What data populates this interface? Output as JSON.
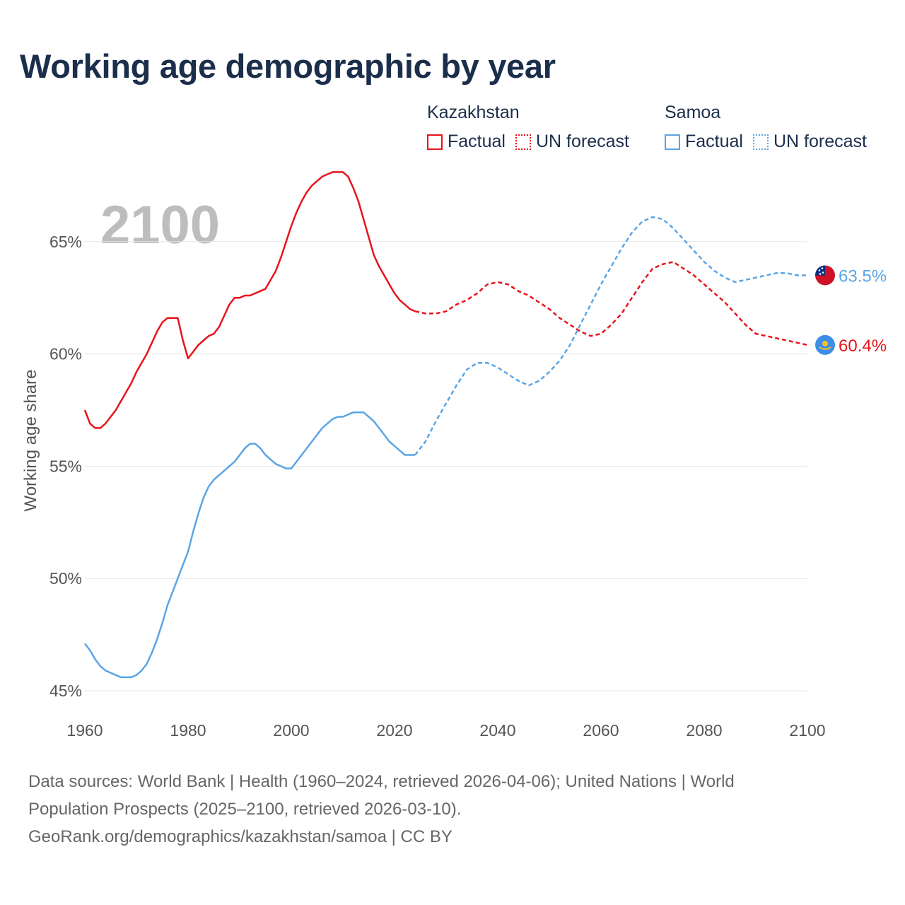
{
  "title": "Working age demographic by year",
  "year_watermark": "2100",
  "legend": {
    "groups": [
      {
        "name": "Kazakhstan",
        "color": "#e8141b",
        "factual": "Factual",
        "forecast": "UN forecast"
      },
      {
        "name": "Samoa",
        "color": "#5aa5e6",
        "factual": "Factual",
        "forecast": "UN forecast"
      }
    ]
  },
  "chart_data": {
    "type": "line",
    "title": "Working age demographic by year",
    "xlabel": "",
    "ylabel": "Working age share",
    "xlim": [
      1960,
      2100
    ],
    "ylim": [
      45,
      68.3
    ],
    "x_ticks": [
      1960,
      1980,
      2000,
      2020,
      2040,
      2060,
      2080,
      2100
    ],
    "y_ticks": [
      45,
      50,
      55,
      60,
      65
    ],
    "y_tick_labels": [
      "45%",
      "50%",
      "55%",
      "60%",
      "65%"
    ],
    "grid": true,
    "series": [
      {
        "name": "Kazakhstan",
        "color": "#e8141b",
        "end_label": "60.4%",
        "factual": {
          "x": [
            1960,
            1961,
            1962,
            1963,
            1964,
            1965,
            1966,
            1967,
            1968,
            1969,
            1970,
            1971,
            1972,
            1973,
            1974,
            1975,
            1976,
            1977,
            1978,
            1979,
            1980,
            1981,
            1982,
            1983,
            1984,
            1985,
            1986,
            1987,
            1988,
            1989,
            1990,
            1991,
            1992,
            1993,
            1994,
            1995,
            1996,
            1997,
            1998,
            1999,
            2000,
            2001,
            2002,
            2003,
            2004,
            2005,
            2006,
            2007,
            2008,
            2009,
            2010,
            2011,
            2012,
            2013,
            2014,
            2015,
            2016,
            2017,
            2018,
            2019,
            2020,
            2021,
            2022,
            2023,
            2024
          ],
          "y": [
            57.5,
            56.9,
            56.7,
            56.7,
            56.9,
            57.2,
            57.5,
            57.9,
            58.3,
            58.7,
            59.2,
            59.6,
            60.0,
            60.5,
            61.0,
            61.4,
            61.6,
            61.6,
            61.6,
            60.6,
            59.8,
            60.1,
            60.4,
            60.6,
            60.8,
            60.9,
            61.2,
            61.7,
            62.2,
            62.5,
            62.5,
            62.6,
            62.6,
            62.7,
            62.8,
            62.9,
            63.3,
            63.7,
            64.3,
            65.0,
            65.7,
            66.3,
            66.8,
            67.2,
            67.5,
            67.7,
            67.9,
            68.0,
            68.1,
            68.1,
            68.1,
            67.9,
            67.4,
            66.8,
            66.0,
            65.2,
            64.4,
            63.9,
            63.5,
            63.1,
            62.7,
            62.4,
            62.2,
            62.0,
            61.9
          ]
        },
        "forecast": {
          "x": [
            2024,
            2026,
            2028,
            2030,
            2032,
            2034,
            2036,
            2038,
            2040,
            2042,
            2044,
            2046,
            2048,
            2050,
            2052,
            2054,
            2056,
            2058,
            2060,
            2062,
            2064,
            2066,
            2068,
            2070,
            2072,
            2074,
            2076,
            2078,
            2080,
            2082,
            2084,
            2086,
            2088,
            2090,
            2092,
            2094,
            2096,
            2098,
            2100
          ],
          "y": [
            61.9,
            61.8,
            61.8,
            61.9,
            62.2,
            62.4,
            62.7,
            63.1,
            63.2,
            63.1,
            62.8,
            62.6,
            62.3,
            62.0,
            61.6,
            61.3,
            61.0,
            60.8,
            60.9,
            61.3,
            61.8,
            62.5,
            63.2,
            63.8,
            64.0,
            64.1,
            63.8,
            63.5,
            63.1,
            62.7,
            62.3,
            61.8,
            61.3,
            60.9,
            60.8,
            60.7,
            60.6,
            60.5,
            60.4
          ]
        }
      },
      {
        "name": "Samoa",
        "color": "#5aa5e6",
        "end_label": "63.5%",
        "factual": {
          "x": [
            1960,
            1961,
            1962,
            1963,
            1964,
            1965,
            1966,
            1967,
            1968,
            1969,
            1970,
            1971,
            1972,
            1973,
            1974,
            1975,
            1976,
            1977,
            1978,
            1979,
            1980,
            1981,
            1982,
            1983,
            1984,
            1985,
            1986,
            1987,
            1988,
            1989,
            1990,
            1991,
            1992,
            1993,
            1994,
            1995,
            1996,
            1997,
            1998,
            1999,
            2000,
            2001,
            2002,
            2003,
            2004,
            2005,
            2006,
            2007,
            2008,
            2009,
            2010,
            2011,
            2012,
            2013,
            2014,
            2015,
            2016,
            2017,
            2018,
            2019,
            2020,
            2021,
            2022,
            2023,
            2024
          ],
          "y": [
            47.1,
            46.8,
            46.4,
            46.1,
            45.9,
            45.8,
            45.7,
            45.6,
            45.6,
            45.6,
            45.7,
            45.9,
            46.2,
            46.7,
            47.3,
            48.0,
            48.8,
            49.4,
            50.0,
            50.6,
            51.2,
            52.1,
            52.9,
            53.6,
            54.1,
            54.4,
            54.6,
            54.8,
            55.0,
            55.2,
            55.5,
            55.8,
            56.0,
            56.0,
            55.8,
            55.5,
            55.3,
            55.1,
            55.0,
            54.9,
            54.9,
            55.2,
            55.5,
            55.8,
            56.1,
            56.4,
            56.7,
            56.9,
            57.1,
            57.2,
            57.2,
            57.3,
            57.4,
            57.4,
            57.4,
            57.2,
            57.0,
            56.7,
            56.4,
            56.1,
            55.9,
            55.7,
            55.5,
            55.5,
            55.5
          ]
        },
        "forecast": {
          "x": [
            2024,
            2026,
            2028,
            2030,
            2032,
            2034,
            2036,
            2038,
            2040,
            2042,
            2044,
            2046,
            2048,
            2050,
            2052,
            2054,
            2056,
            2058,
            2060,
            2062,
            2064,
            2066,
            2068,
            2070,
            2072,
            2074,
            2076,
            2078,
            2080,
            2082,
            2084,
            2086,
            2088,
            2090,
            2092,
            2094,
            2096,
            2098,
            2100
          ],
          "y": [
            55.5,
            56.1,
            57.0,
            57.8,
            58.6,
            59.3,
            59.6,
            59.6,
            59.4,
            59.1,
            58.8,
            58.6,
            58.8,
            59.2,
            59.7,
            60.4,
            61.3,
            62.2,
            63.1,
            63.9,
            64.7,
            65.4,
            65.9,
            66.1,
            66.0,
            65.6,
            65.1,
            64.6,
            64.1,
            63.7,
            63.4,
            63.2,
            63.3,
            63.4,
            63.5,
            63.6,
            63.6,
            63.5,
            63.5
          ]
        }
      }
    ]
  },
  "footer": {
    "line1": "Data sources: World Bank | Health (1960–2024, retrieved 2026-04-06); United Nations | World",
    "line2": "Population Prospects (2025–2100, retrieved 2026-03-10).",
    "line3": "GeoRank.org/demographics/kazakhstan/samoa | CC BY"
  }
}
